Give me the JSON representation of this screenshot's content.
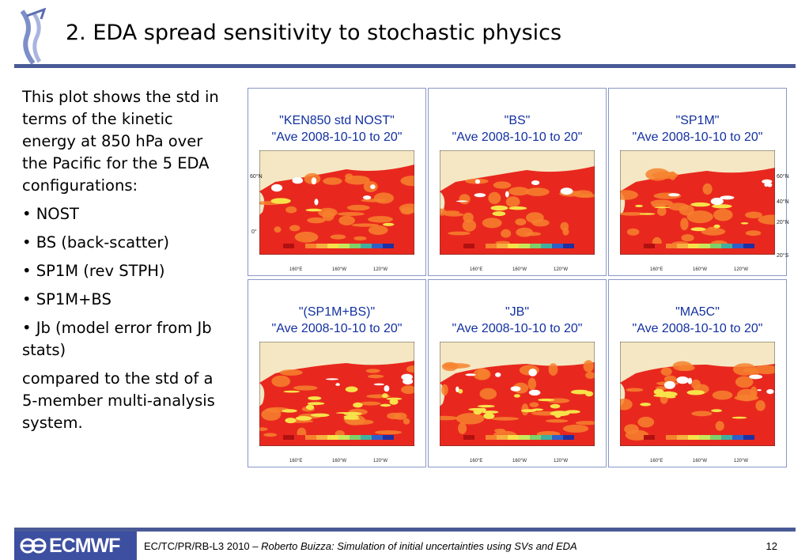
{
  "slide": {
    "title": "2. EDA spread sensitivity to stochastic physics",
    "body_paragraphs": [
      "This plot shows the std in terms of the kinetic energy at 850 hPa over the Pacific for the 5 EDA configurations:",
      "• NOST",
      "• BS (back-scatter)",
      "• SP1M (rev STPH)",
      "• SP1M+BS",
      "• Jb (model error from Jb stats)",
      "compared to the std of a 5-member multi-analysis system."
    ]
  },
  "panels": [
    {
      "line1": "\"KEN850 std NOST\"",
      "line2": "\"Ave 2008-10-10 to 20\""
    },
    {
      "line1": "\"BS\"",
      "line2": "\"Ave 2008-10-10 to 20\""
    },
    {
      "line1": "\"SP1M\"",
      "line2": "\"Ave 2008-10-10 to 20\""
    },
    {
      "line1": "\"(SP1M+BS)\"",
      "line2": "\"Ave 2008-10-10 to 20\""
    },
    {
      "line1": "\"JB\"",
      "line2": "\"Ave 2008-10-10 to 20\""
    },
    {
      "line1": "\"MA5C\"",
      "line2": "\"Ave 2008-10-10 to 20\""
    }
  ],
  "map_axes": {
    "lat_labels": [
      "60°N",
      "40°N",
      "20°N",
      "0°",
      "20°S"
    ],
    "lon_labels": [
      "160°E",
      "160°W",
      "120°W"
    ]
  },
  "colors": {
    "title_rule": "#4a5a96",
    "panel_title": "#1230a0",
    "map_red": "#e8281e",
    "map_orange": "#f6812e",
    "map_yellow": "#f7e24a",
    "land": "#f5e7c3"
  },
  "footer": {
    "logo_text": "ECMWF",
    "citation_plain": "EC/TC/PR/RB-L3 2010 – ",
    "citation_italic": "Roberto Buizza: Simulation of initial uncertainties using SVs and EDA",
    "page_number": "12"
  }
}
